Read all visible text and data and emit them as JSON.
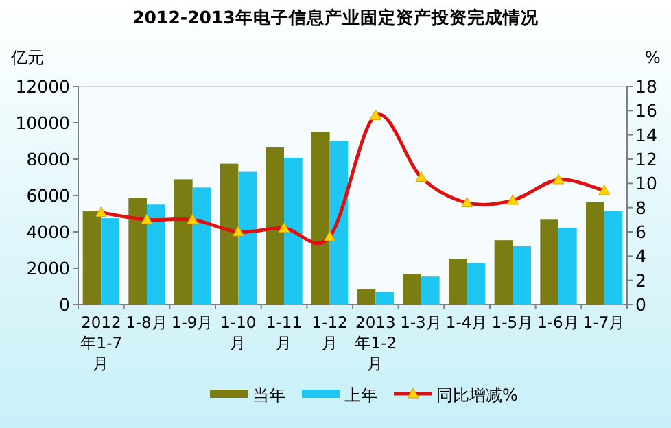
{
  "chart_data": {
    "type": "bar",
    "title": "2012-2013年电子信息产业固定资产投资完成情况",
    "ylabel": "亿元",
    "y2label": "%",
    "categories": [
      "2012年1-7月",
      "1-8月",
      "1-9月",
      "1-10月",
      "1-11月",
      "1-12月",
      "2013年1-2月",
      "1-3月",
      "1-4月",
      "1-5月",
      "1-6月",
      "1-7月"
    ],
    "series": [
      {
        "name": "当年",
        "color": "#7b7d12",
        "values": [
          5130,
          5880,
          6890,
          7750,
          8640,
          9500,
          830,
          1690,
          2530,
          3540,
          4670,
          5630
        ]
      },
      {
        "name": "上年",
        "color": "#1ec6f2",
        "values": [
          4750,
          5500,
          6440,
          7300,
          8080,
          9020,
          680,
          1540,
          2300,
          3210,
          4220,
          5150
        ]
      },
      {
        "name": "同比增减%",
        "type": "line",
        "axis": "y2",
        "color": "#e01010",
        "marker": "triangle",
        "values": [
          7.6,
          7.0,
          7.0,
          6.0,
          6.3,
          5.6,
          15.6,
          10.5,
          8.4,
          8.6,
          10.3,
          9.4
        ]
      }
    ],
    "ylim": [
      0,
      12000
    ],
    "yticks": [
      0,
      2000,
      4000,
      6000,
      8000,
      10000,
      12000
    ],
    "y2lim": [
      0,
      18
    ],
    "y2ticks": [
      0,
      2,
      4,
      6,
      8,
      10,
      12,
      14,
      16,
      18
    ],
    "grid": false,
    "legend": "bottom"
  }
}
